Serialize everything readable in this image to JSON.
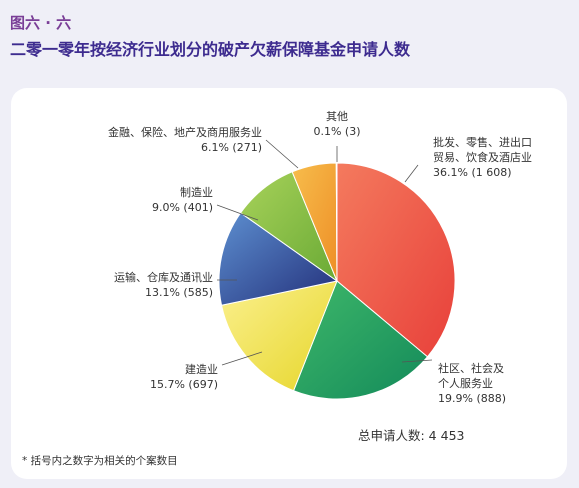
{
  "figure_number": "图六 · 六",
  "figure_title": "二零一零年按经济行业划分的破产欠薪保障基金申请人数",
  "total_text": "总申请人数: 4 453",
  "footnote": "* 括号内之数字为相关的个案数目",
  "chart_data": {
    "type": "pie",
    "title": "二零一零年按经济行业划分的破产欠薪保障基金申请人数",
    "total": 4453,
    "slices": [
      {
        "label_lines": [
          "批发、零售、进出口",
          "贸易、饮食及酒店业"
        ],
        "percent": 36.1,
        "count": 1608,
        "value_text": "36.1% (1 608)",
        "color": "#e8403a",
        "color_light": "#f47a5e"
      },
      {
        "label_lines": [
          "社区、社会及",
          "个人服务业"
        ],
        "percent": 19.9,
        "count": 888,
        "value_text": "19.9% (888)",
        "color": "#138a5a",
        "color_light": "#3fb86a"
      },
      {
        "label_lines": [
          "建造业"
        ],
        "percent": 15.7,
        "count": 697,
        "value_text": "15.7% (697)",
        "color": "#e6d62a",
        "color_light": "#fbf08e"
      },
      {
        "label_lines": [
          "运输、仓库及通讯业"
        ],
        "percent": 13.1,
        "count": 585,
        "value_text": "13.1% (585)",
        "color": "#232f7a",
        "color_light": "#5d8fd0"
      },
      {
        "label_lines": [
          "制造业"
        ],
        "percent": 9.0,
        "count": 401,
        "value_text": "9.0% (401)",
        "color": "#6aaa35",
        "color_light": "#a8d25a"
      },
      {
        "label_lines": [
          "金融、保险、地产及商用服务业"
        ],
        "percent": 6.1,
        "count": 271,
        "value_text": "6.1% (271)",
        "color": "#ee8e26",
        "color_light": "#f7bd4c"
      },
      {
        "label_lines": [
          "其他"
        ],
        "percent": 0.1,
        "count": 3,
        "value_text": "0.1% (3)",
        "color": "#38b4d8",
        "color_light": "#8bd8ee"
      }
    ]
  }
}
